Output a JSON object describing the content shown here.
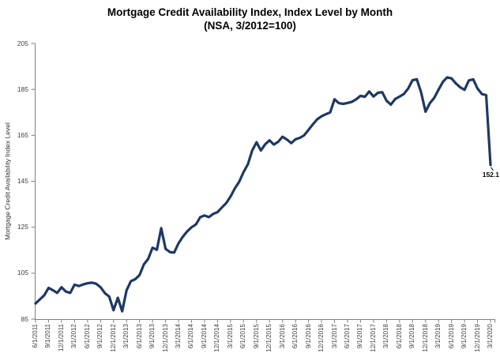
{
  "title": {
    "line1": "Mortgage Credit Availability Index, Index Level by Month",
    "line2": "(NSA, 3/2012=100)"
  },
  "y_axis": {
    "title": "Mortgage Credit Availability Index Level",
    "ticks": [
      205,
      185,
      165,
      145,
      125,
      105,
      85
    ]
  },
  "x_axis": {
    "tick_labels": [
      "6/1/2011",
      "9/1/2011",
      "12/1/2011",
      "3/1/2012",
      "6/1/2012",
      "9/1/2012",
      "12/1/2012",
      "3/1/2013",
      "6/1/2013",
      "9/1/2013",
      "12/1/2013",
      "3/1/2014",
      "6/1/2014",
      "9/1/2014",
      "12/1/2014",
      "3/1/2015",
      "6/1/2015",
      "9/1/2015",
      "12/1/2015",
      "3/1/2016",
      "6/1/2016",
      "9/1/2016",
      "12/1/2016",
      "3/1/2017",
      "6/1/2017",
      "9/1/2017",
      "12/1/2017",
      "3/1/2018",
      "6/1/2018",
      "9/1/2018",
      "12/1/2018",
      "3/1/2019",
      "6/1/2019",
      "9/1/2019",
      "12/1/2019",
      "3/1/2020"
    ]
  },
  "annotation": {
    "last_value_label": "152.1"
  },
  "colors": {
    "line": "#1f3864",
    "axis": "#808080",
    "tick_text": "#404040",
    "title_text": "#000000",
    "annotation_text": "#000000",
    "background": "#ffffff"
  },
  "chart_data": {
    "type": "line",
    "title": "Mortgage Credit Availability Index, Index Level by Month (NSA, 3/2012=100)",
    "xlabel": "",
    "ylabel": "Mortgage Credit Availability Index Level",
    "ylim": [
      85,
      205
    ],
    "y_ticks": [
      85,
      105,
      125,
      145,
      165,
      185,
      205
    ],
    "grid": false,
    "legend": false,
    "x_tick_labels": [
      "6/1/2011",
      "9/1/2011",
      "12/1/2011",
      "3/1/2012",
      "6/1/2012",
      "9/1/2012",
      "12/1/2012",
      "3/1/2013",
      "6/1/2013",
      "9/1/2013",
      "12/1/2013",
      "3/1/2014",
      "6/1/2014",
      "9/1/2014",
      "12/1/2014",
      "3/1/2015",
      "6/1/2015",
      "9/1/2015",
      "12/1/2015",
      "3/1/2016",
      "6/1/2016",
      "9/1/2016",
      "12/1/2016",
      "3/1/2017",
      "6/1/2017",
      "9/1/2017",
      "12/1/2017",
      "3/1/2018",
      "6/1/2018",
      "9/1/2018",
      "12/1/2018",
      "3/1/2019",
      "6/1/2019",
      "9/1/2019",
      "12/1/2019",
      "3/1/2020"
    ],
    "series": [
      {
        "name": "Mortgage Credit Availability Index, NSA (3/2012=100)",
        "frequency": "monthly",
        "start_date": "6/1/2011",
        "end_date": "3/1/2020",
        "values": [
          91.8,
          93.6,
          95.4,
          98.6,
          97.6,
          96.4,
          98.9,
          97.0,
          96.4,
          100.0,
          99.4,
          100.1,
          100.6,
          100.9,
          100.4,
          98.9,
          96.3,
          94.8,
          88.9,
          94.3,
          88.4,
          97.5,
          101.5,
          102.4,
          104.2,
          108.8,
          111.2,
          116.1,
          115.2,
          124.6,
          115.6,
          114.2,
          114.0,
          118.0,
          120.9,
          123.2,
          125.0,
          126.2,
          129.4,
          130.1,
          129.4,
          130.8,
          131.6,
          133.6,
          135.5,
          138.4,
          141.9,
          144.8,
          149.0,
          152.4,
          158.4,
          162.0,
          158.4,
          161.1,
          162.8,
          161.0,
          162.2,
          164.4,
          163.2,
          161.6,
          163.3,
          163.9,
          165.0,
          167.4,
          169.8,
          172.0,
          173.3,
          174.2,
          175.0,
          180.7,
          179.0,
          178.7,
          179.1,
          179.6,
          180.7,
          182.2,
          181.8,
          184.1,
          181.9,
          183.5,
          183.8,
          180.1,
          178.4,
          180.8,
          181.9,
          183.0,
          185.4,
          189.0,
          189.4,
          183.6,
          175.3,
          179.0,
          181.3,
          184.9,
          188.3,
          190.2,
          189.8,
          187.6,
          185.9,
          184.8,
          188.9,
          189.4,
          185.4,
          183.0,
          182.5,
          152.1
        ]
      }
    ],
    "last_point_label": "152.1"
  }
}
